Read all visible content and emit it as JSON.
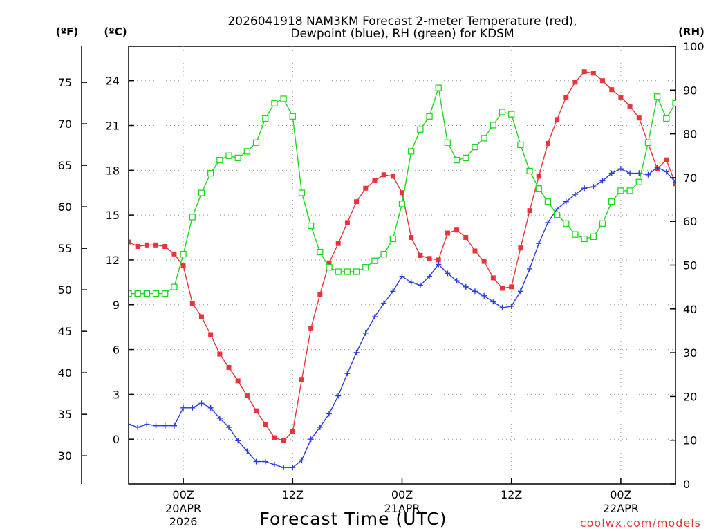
{
  "chart_data": {
    "type": "line",
    "title": {
      "line1": "2026041918 NAM3KM Forecast 2-meter Temperature (red),",
      "line2": "Dewpoint (blue), RH (green) for KDSM"
    },
    "xlabel": "Forecast Time (UTC)",
    "credit": "coolwx.com/models",
    "units": {
      "fahrenheit": "(ºF)",
      "celsius": "(ºC)",
      "rh": "(RH)"
    },
    "x_unit": "forecast hour",
    "xlim": [
      0,
      60
    ],
    "x_ticks": [
      {
        "x": 6,
        "l1": "00Z",
        "l2": "20APR",
        "l3": "2026"
      },
      {
        "x": 18,
        "l1": "12Z",
        "l2": "",
        "l3": ""
      },
      {
        "x": 30,
        "l1": "00Z",
        "l2": "21APR",
        "l3": ""
      },
      {
        "x": 42,
        "l1": "12Z",
        "l2": "",
        "l3": ""
      },
      {
        "x": 54,
        "l1": "00Z",
        "l2": "22APR",
        "l3": ""
      }
    ],
    "y_celsius": {
      "min": -3,
      "max": 26.3,
      "ticks": [
        0,
        3,
        6,
        9,
        12,
        15,
        18,
        21,
        24
      ]
    },
    "y_fahrenheit": {
      "ticks": [
        30,
        35,
        40,
        45,
        50,
        55,
        60,
        65,
        70,
        75
      ]
    },
    "y_rh": {
      "min": 0,
      "max": 100,
      "ticks": [
        0,
        10,
        20,
        30,
        40,
        50,
        60,
        70,
        80,
        90,
        100
      ]
    },
    "x": [
      0,
      1,
      2,
      3,
      4,
      5,
      6,
      7,
      8,
      9,
      10,
      11,
      12,
      13,
      14,
      15,
      16,
      17,
      18,
      19,
      20,
      21,
      22,
      23,
      24,
      25,
      26,
      27,
      28,
      29,
      30,
      31,
      32,
      33,
      34,
      35,
      36,
      37,
      38,
      39,
      40,
      41,
      42,
      43,
      44,
      45,
      46,
      47,
      48,
      49,
      50,
      51,
      52,
      53,
      54,
      55,
      56,
      57,
      58,
      59,
      60
    ],
    "series": [
      {
        "name": "Temperature",
        "axis": "celsius",
        "color": "#e8353a",
        "marker": "filled-square",
        "values": [
          13.2,
          12.9,
          13.0,
          13.0,
          12.9,
          12.4,
          11.6,
          9.1,
          8.2,
          7.0,
          5.7,
          4.8,
          3.9,
          2.9,
          1.9,
          1.0,
          0.1,
          -0.1,
          0.5,
          4.0,
          7.4,
          9.7,
          11.8,
          13.1,
          14.5,
          15.9,
          16.8,
          17.3,
          17.7,
          17.6,
          16.5,
          13.5,
          12.3,
          12.1,
          12.0,
          13.8,
          14.0,
          13.5,
          12.6,
          11.9,
          10.8,
          10.1,
          10.2,
          12.8,
          15.3,
          17.6,
          19.8,
          21.4,
          22.9,
          23.9,
          24.6,
          24.5,
          24.0,
          23.4,
          22.9,
          22.3,
          21.5,
          19.8,
          18.1,
          18.7,
          17.1
        ]
      },
      {
        "name": "Dewpoint",
        "axis": "celsius",
        "color": "#2a3de0",
        "marker": "plus",
        "values": [
          1.0,
          0.8,
          1.0,
          0.9,
          0.9,
          0.9,
          2.1,
          2.1,
          2.4,
          2.1,
          1.4,
          0.8,
          -0.1,
          -0.8,
          -1.5,
          -1.5,
          -1.7,
          -1.9,
          -1.9,
          -1.4,
          0.0,
          0.8,
          1.7,
          2.9,
          4.4,
          5.8,
          7.1,
          8.2,
          9.1,
          9.9,
          10.9,
          10.5,
          10.3,
          10.9,
          11.7,
          11.1,
          10.6,
          10.2,
          9.9,
          9.6,
          9.2,
          8.8,
          8.9,
          9.9,
          11.4,
          13.1,
          14.5,
          15.4,
          15.9,
          16.4,
          16.8,
          16.9,
          17.3,
          17.8,
          18.1,
          17.8,
          17.8,
          17.7,
          18.2,
          17.9,
          17.2
        ]
      },
      {
        "name": "RH",
        "axis": "rh",
        "color": "#1ed61e",
        "marker": "open-square",
        "values": [
          43.5,
          43.5,
          43.5,
          43.5,
          43.5,
          45,
          52.5,
          61,
          66.5,
          71,
          74,
          75,
          74.5,
          76,
          78,
          83.5,
          87,
          88,
          84,
          66.5,
          59,
          53,
          49.5,
          48.5,
          48.5,
          48.5,
          49.5,
          51,
          52.5,
          56,
          64,
          76,
          81,
          84,
          90.5,
          78,
          74,
          74.5,
          77,
          79,
          82,
          85,
          84.5,
          77.5,
          71.5,
          67.5,
          64.5,
          61.5,
          59.5,
          57,
          56,
          56.5,
          59.5,
          64.5,
          67,
          67,
          69,
          78,
          88.5,
          83.5,
          87
        ]
      }
    ]
  }
}
